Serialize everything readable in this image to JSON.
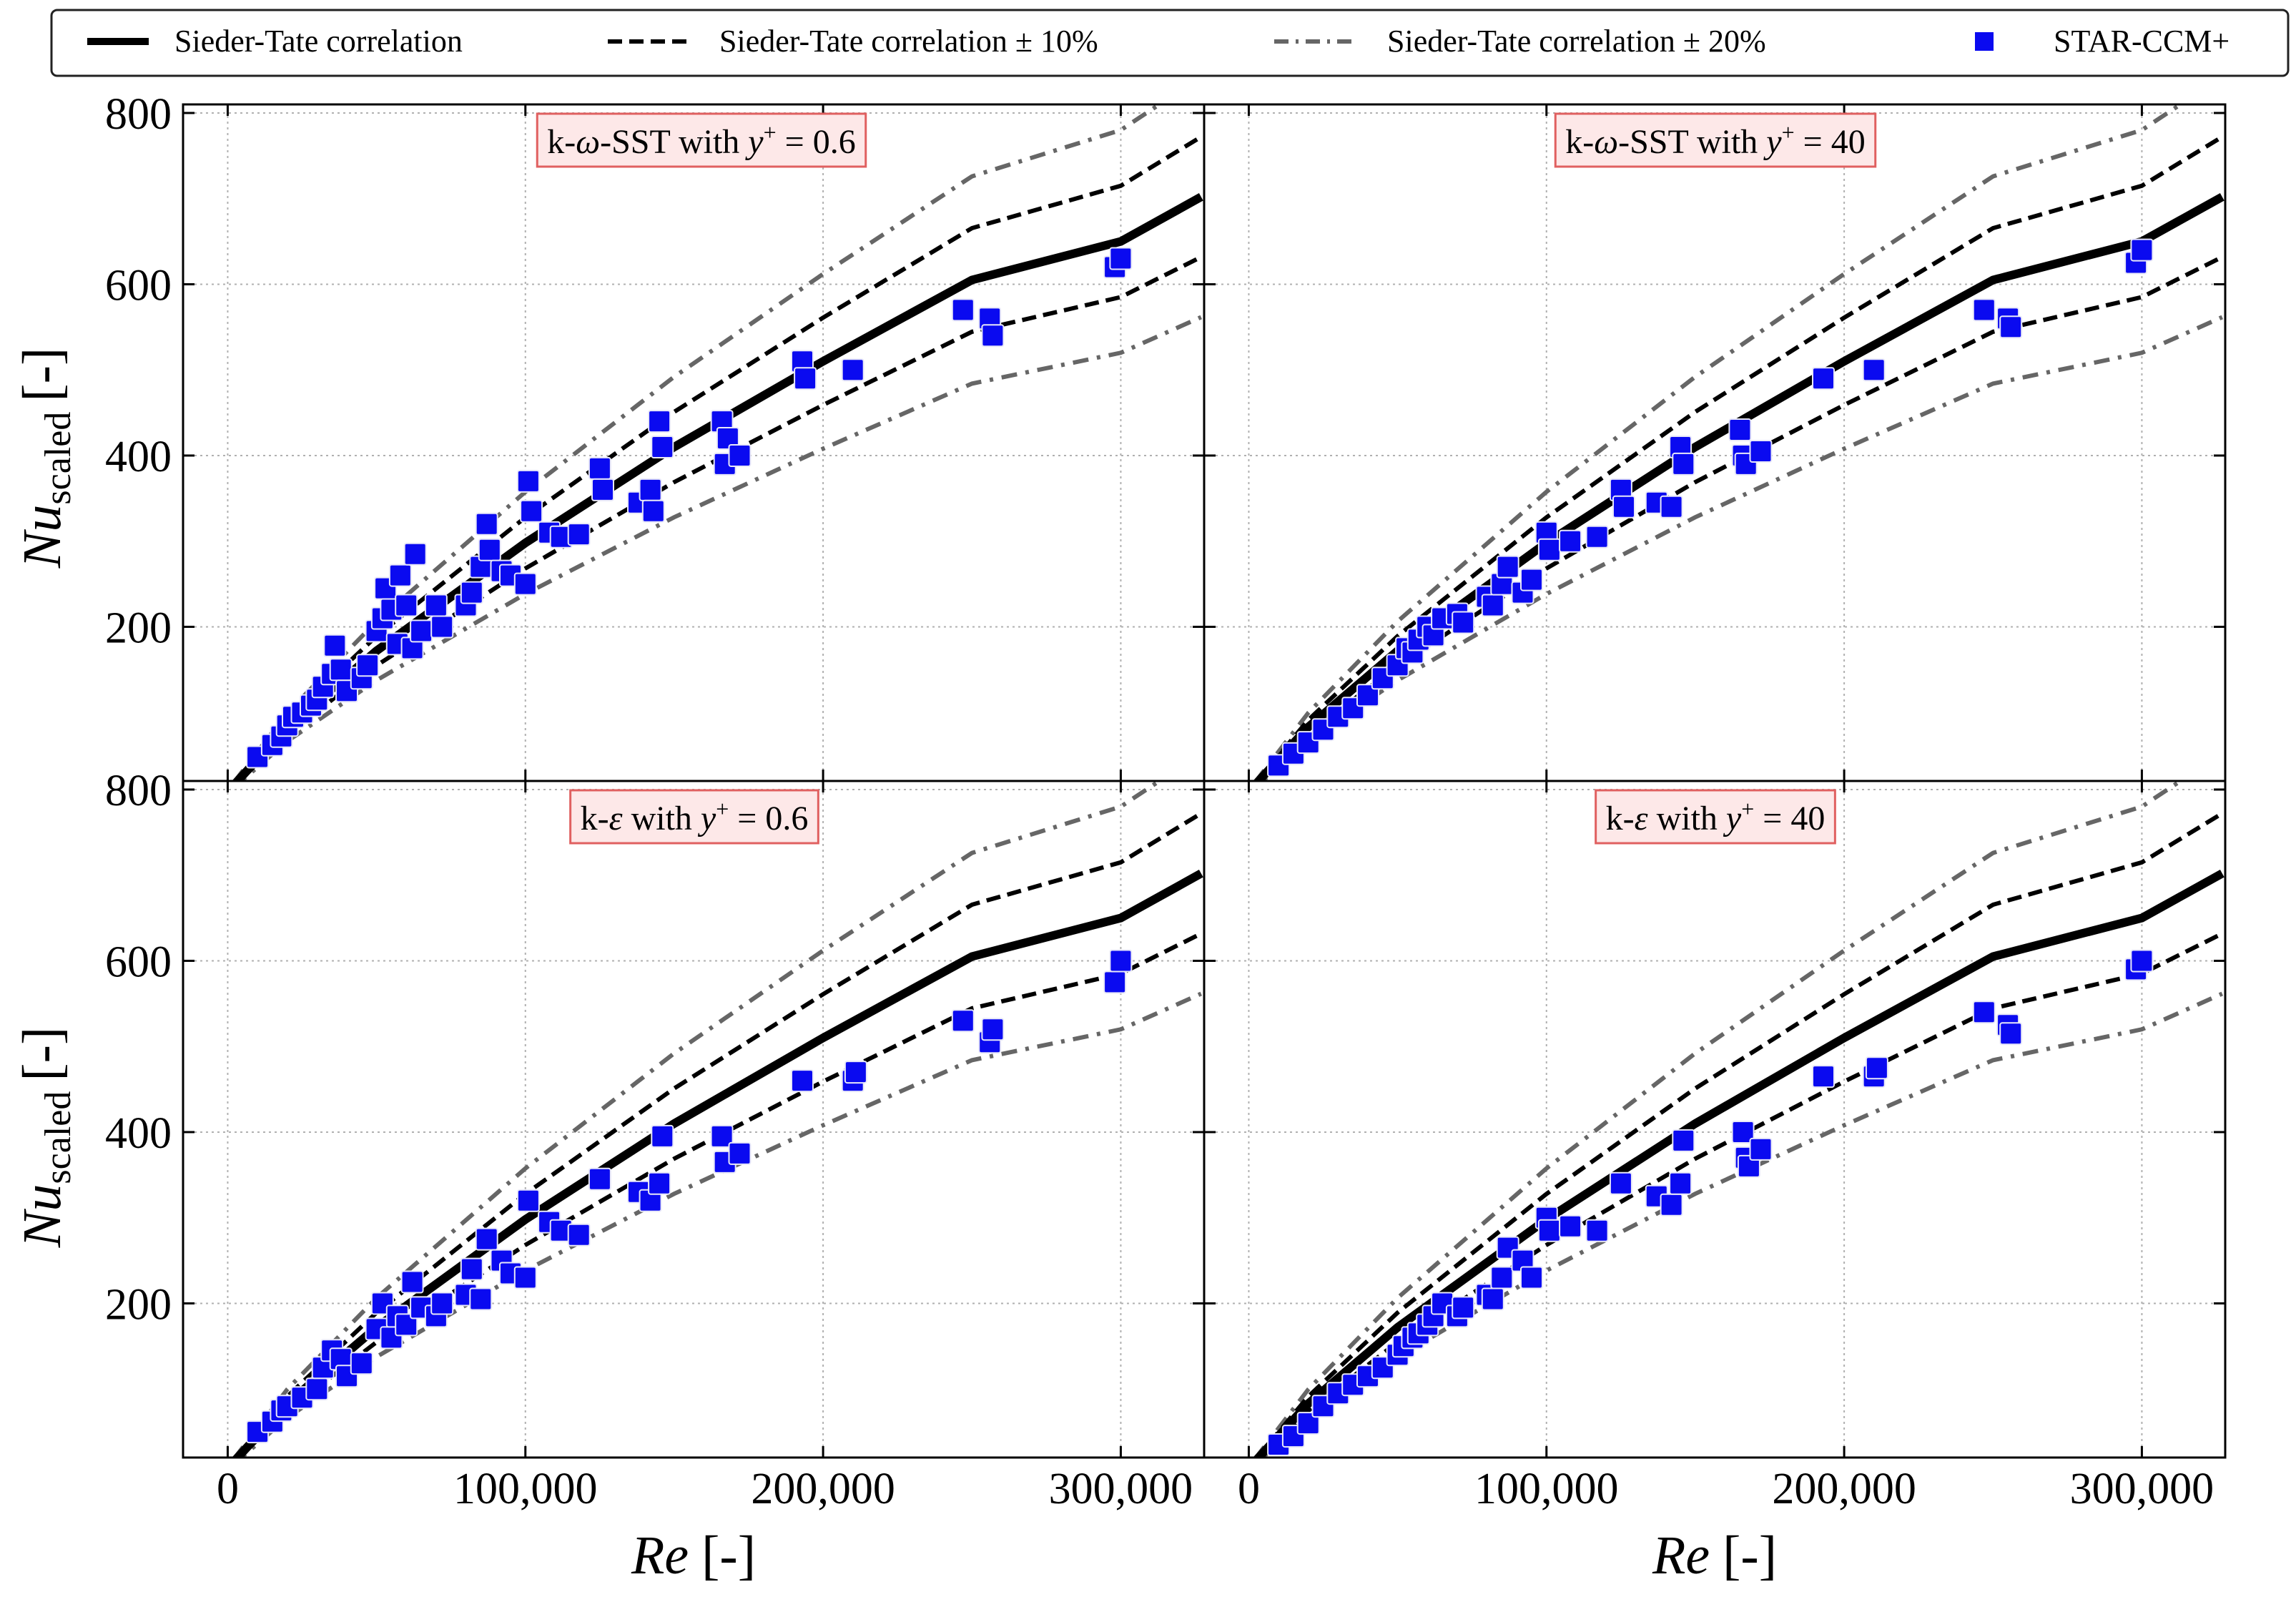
{
  "legend": {
    "items": [
      {
        "label": "Sieder-Tate correlation",
        "style": "solid"
      },
      {
        "label": "Sieder-Tate correlation ± 10%",
        "style": "dashed"
      },
      {
        "label": "Sieder-Tate correlation ± 20%",
        "style": "dashdot"
      },
      {
        "label": "STAR-CCM+",
        "style": "marker"
      }
    ]
  },
  "colors": {
    "correlation": "#000000",
    "band10": "#000000",
    "band20": "#666666",
    "marker": "#0a0af0",
    "label_box_fill": "#fde8e8",
    "label_box_stroke": "#e06060",
    "grid": "#b0b0b0"
  },
  "axes": {
    "xlabel_main": "Re",
    "xlabel_unit": "[-]",
    "ylabel_main": "Nu",
    "ylabel_sub": "scaled",
    "ylabel_unit": "[-]",
    "xlim": [
      -15000,
      328000
    ],
    "ylim": [
      20,
      810
    ],
    "xticks": [
      0,
      100000,
      200000,
      300000
    ],
    "xtick_labels": [
      "0",
      "100,000",
      "200,000",
      "300,000"
    ],
    "yticks": [
      200,
      400,
      600,
      800
    ],
    "ytick_labels": [
      "200",
      "400",
      "600",
      "800"
    ]
  },
  "chart_data": [
    {
      "type": "scatter",
      "panel": "top-left",
      "label_parts": [
        "k-",
        "ω",
        "-SST with ",
        "y",
        "+",
        " = 0.6"
      ],
      "correlation": {
        "name": "Sieder-Tate correlation",
        "x": [
          2000,
          20000,
          50000,
          100000,
          150000,
          200000,
          250000,
          300000,
          328000
        ],
        "y": [
          15,
          83,
          172,
          298,
          410,
          510,
          605,
          650,
          702
        ]
      },
      "series": [
        {
          "name": "STAR-CCM+",
          "x": [
            10000,
            15000,
            18000,
            20000,
            22000,
            25000,
            28000,
            30000,
            32000,
            35000,
            36000,
            38000,
            40000,
            45000,
            47000,
            50000,
            52000,
            53000,
            55000,
            57000,
            58000,
            60000,
            62000,
            63000,
            65000,
            70000,
            72000,
            80000,
            82000,
            85000,
            87000,
            88000,
            92000,
            95000,
            100000,
            101000,
            102000,
            108000,
            112000,
            118000,
            125000,
            126000,
            138000,
            142000,
            143000,
            145000,
            146000,
            166000,
            167000,
            168000,
            172000,
            193000,
            194000,
            210000,
            247000,
            256000,
            257000,
            298000,
            300000
          ],
          "y": [
            48,
            62,
            72,
            85,
            95,
            100,
            108,
            115,
            130,
            145,
            178,
            150,
            125,
            140,
            155,
            195,
            210,
            245,
            220,
            180,
            260,
            225,
            175,
            285,
            195,
            225,
            200,
            225,
            240,
            270,
            320,
            290,
            265,
            260,
            250,
            370,
            335,
            310,
            305,
            308,
            385,
            360,
            345,
            360,
            335,
            440,
            410,
            440,
            390,
            420,
            400,
            510,
            490,
            500,
            570,
            560,
            540,
            620,
            630
          ]
        }
      ]
    },
    {
      "type": "scatter",
      "panel": "top-right",
      "label_parts": [
        "k-",
        "ω",
        "-SST with ",
        "y",
        "+",
        " = 40"
      ],
      "correlation": {
        "name": "Sieder-Tate correlation",
        "x": [
          2000,
          20000,
          50000,
          100000,
          150000,
          200000,
          250000,
          300000,
          328000
        ],
        "y": [
          15,
          83,
          172,
          298,
          410,
          510,
          605,
          650,
          702
        ]
      },
      "series": [
        {
          "name": "STAR-CCM+",
          "x": [
            10000,
            15000,
            20000,
            25000,
            30000,
            35000,
            40000,
            45000,
            50000,
            53000,
            55000,
            57000,
            60000,
            62000,
            65000,
            70000,
            72000,
            80000,
            82000,
            85000,
            87000,
            92000,
            95000,
            100000,
            101000,
            108000,
            117000,
            125000,
            126000,
            137000,
            142000,
            145000,
            146000,
            165000,
            166000,
            167000,
            172000,
            193000,
            210000,
            247000,
            255000,
            256000,
            298000,
            300000
          ],
          "y": [
            38,
            52,
            65,
            80,
            95,
            105,
            120,
            140,
            155,
            175,
            170,
            185,
            200,
            190,
            210,
            215,
            205,
            235,
            225,
            250,
            270,
            240,
            255,
            310,
            290,
            300,
            305,
            360,
            340,
            345,
            340,
            410,
            390,
            430,
            400,
            390,
            405,
            490,
            500,
            570,
            560,
            550,
            625,
            640
          ]
        }
      ]
    },
    {
      "type": "scatter",
      "panel": "bottom-left",
      "label_parts": [
        "k-",
        "ε",
        " with ",
        "y",
        "+",
        " = 0.6"
      ],
      "correlation": {
        "name": "Sieder-Tate correlation",
        "x": [
          2000,
          20000,
          50000,
          100000,
          150000,
          200000,
          250000,
          300000,
          328000
        ],
        "y": [
          15,
          83,
          172,
          298,
          410,
          510,
          605,
          650,
          702
        ]
      },
      "series": [
        {
          "name": "STAR-CCM+",
          "x": [
            10000,
            15000,
            18000,
            20000,
            25000,
            30000,
            32000,
            35000,
            38000,
            40000,
            45000,
            50000,
            52000,
            55000,
            57000,
            60000,
            62000,
            65000,
            70000,
            72000,
            80000,
            82000,
            85000,
            87000,
            92000,
            95000,
            100000,
            101000,
            108000,
            112000,
            118000,
            125000,
            138000,
            142000,
            145000,
            146000,
            166000,
            167000,
            172000,
            193000,
            210000,
            211000,
            247000,
            256000,
            257000,
            298000,
            300000
          ],
          "y": [
            50,
            62,
            75,
            80,
            90,
            100,
            125,
            145,
            135,
            115,
            130,
            170,
            200,
            160,
            185,
            175,
            225,
            195,
            185,
            200,
            210,
            240,
            205,
            275,
            250,
            235,
            230,
            320,
            295,
            285,
            280,
            345,
            330,
            320,
            340,
            395,
            395,
            365,
            375,
            460,
            460,
            470,
            530,
            505,
            520,
            575,
            600
          ]
        }
      ]
    },
    {
      "type": "scatter",
      "panel": "bottom-right",
      "label_parts": [
        "k-",
        "ε",
        " with ",
        "y",
        "+",
        " = 40"
      ],
      "correlation": {
        "name": "Sieder-Tate correlation",
        "x": [
          2000,
          20000,
          50000,
          100000,
          150000,
          200000,
          250000,
          300000,
          328000
        ],
        "y": [
          15,
          83,
          172,
          298,
          410,
          510,
          605,
          650,
          702
        ]
      },
      "series": [
        {
          "name": "STAR-CCM+",
          "x": [
            10000,
            15000,
            20000,
            25000,
            30000,
            35000,
            40000,
            45000,
            50000,
            52000,
            55000,
            57000,
            60000,
            62000,
            65000,
            70000,
            72000,
            80000,
            82000,
            85000,
            87000,
            92000,
            95000,
            100000,
            101000,
            108000,
            117000,
            125000,
            137000,
            142000,
            145000,
            146000,
            166000,
            167000,
            168000,
            172000,
            193000,
            210000,
            211000,
            247000,
            255000,
            256000,
            298000,
            300000
          ],
          "y": [
            35,
            45,
            60,
            80,
            95,
            105,
            115,
            125,
            140,
            150,
            160,
            165,
            175,
            185,
            200,
            185,
            195,
            210,
            205,
            230,
            265,
            250,
            230,
            300,
            285,
            290,
            285,
            340,
            325,
            315,
            340,
            390,
            400,
            370,
            360,
            380,
            465,
            465,
            475,
            540,
            525,
            515,
            590,
            600
          ]
        }
      ]
    }
  ]
}
